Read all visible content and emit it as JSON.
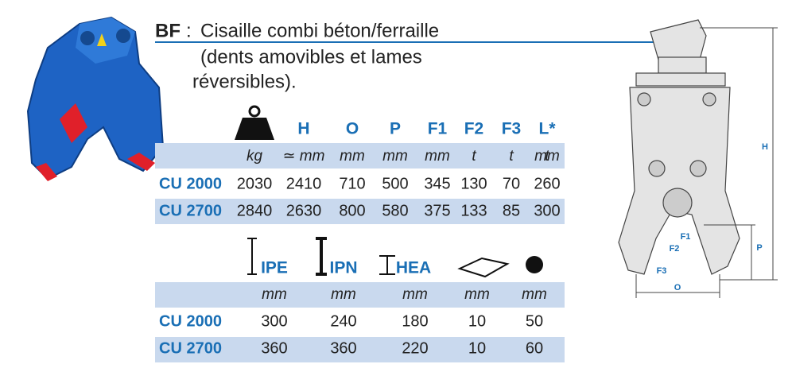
{
  "header": {
    "code": "BF",
    "separator": ":",
    "lines": [
      "Cisaille combi béton/ferraille",
      "(dents amovibles et lames",
      "réversibles)."
    ]
  },
  "table1": {
    "headers": [
      "H",
      "O",
      "P",
      "F1",
      "F2",
      "F3",
      "L*"
    ],
    "units": [
      "kg",
      "≃ mm",
      "mm",
      "mm",
      "mm",
      "t",
      "t",
      "t",
      "mm"
    ],
    "rows": [
      [
        "CU 2000",
        2030,
        2410,
        710,
        500,
        345,
        130,
        70,
        260
      ],
      [
        "CU 2700",
        2840,
        2630,
        800,
        580,
        375,
        133,
        85,
        300
      ]
    ]
  },
  "table2": {
    "headers": [
      "IPE",
      "IPN",
      "HEA"
    ],
    "units": [
      "mm",
      "mm",
      "mm",
      "mm",
      "mm"
    ],
    "rows": [
      [
        "CU 2000",
        300,
        240,
        180,
        10,
        50
      ],
      [
        "CU 2700",
        360,
        360,
        220,
        10,
        60
      ]
    ]
  },
  "diagram": {
    "labels": [
      "H",
      "P",
      "O",
      "F1",
      "F2",
      "F3"
    ]
  }
}
